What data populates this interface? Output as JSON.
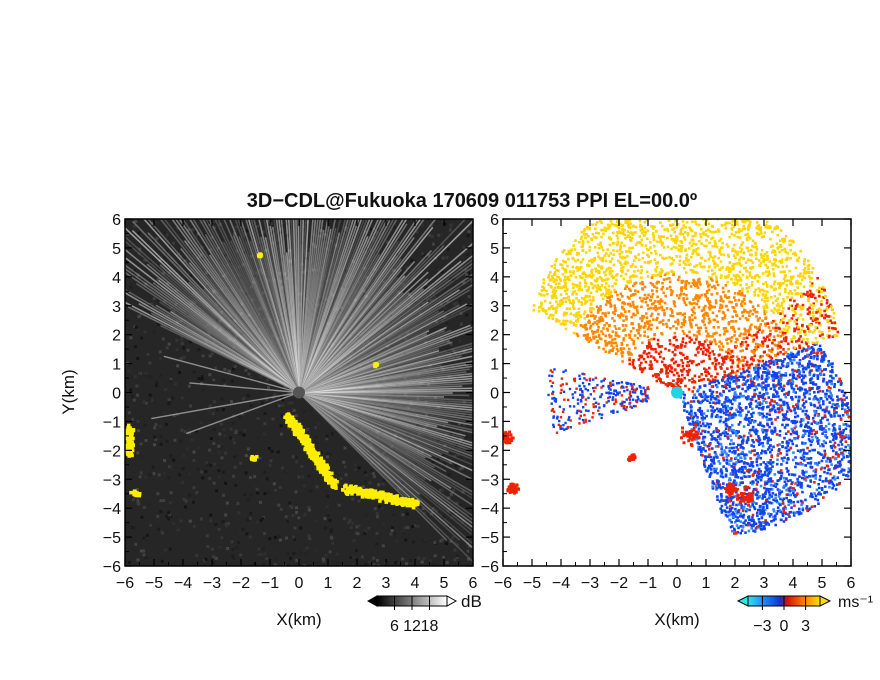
{
  "title": "3D−CDL@Fukuoka 170609 011753 PPI EL=00.0º",
  "colors": {
    "echo_yellow": "#ffee00",
    "vel_cyan": "#22d3e6",
    "vel_blue": "#1144ee",
    "vel_red": "#ee2200",
    "vel_orange": "#ff8800",
    "vel_yellow": "#ffd500"
  },
  "chart_data": [
    {
      "type": "heatmap",
      "panel": "left",
      "variable": "SNR",
      "xlabel": "X(km)",
      "ylabel": "Y(km)",
      "xlim": [
        -6,
        6
      ],
      "ylim": [
        -6,
        6
      ],
      "xticks": [
        -6,
        -5,
        -4,
        -3,
        -2,
        -1,
        0,
        1,
        2,
        3,
        4,
        5,
        6
      ],
      "yticks": [
        -6,
        -5,
        -4,
        -3,
        -2,
        -1,
        0,
        1,
        2,
        3,
        4,
        5,
        6
      ],
      "colorbar": {
        "label": "dB",
        "ticks": [
          6,
          12,
          18
        ],
        "range": [
          0,
          24
        ],
        "scale": "grayscale"
      },
      "sector_deg": [
        -45,
        155
      ],
      "strong_echo_region": "yellow patches along southeast and west edge"
    },
    {
      "type": "heatmap",
      "panel": "right",
      "variable": "Doppler velocity",
      "xlabel": "X(km)",
      "xlim": [
        -6,
        6
      ],
      "ylim": [
        -6,
        6
      ],
      "xticks": [
        -6,
        -5,
        -4,
        -3,
        -2,
        -1,
        0,
        1,
        2,
        3,
        4,
        5,
        6
      ],
      "yticks": [
        -6,
        -5,
        -4,
        -3,
        -2,
        -1,
        0,
        1,
        2,
        3,
        4,
        5,
        6
      ],
      "colorbar": {
        "label": "ms⁻¹",
        "ticks": [
          -3,
          0,
          3
        ],
        "range": [
          -5,
          5
        ],
        "scale": "cyan-blue-red-yellow"
      },
      "positive_region_deg": [
        20,
        150
      ],
      "negative_region_deg": [
        -70,
        20
      ]
    }
  ]
}
